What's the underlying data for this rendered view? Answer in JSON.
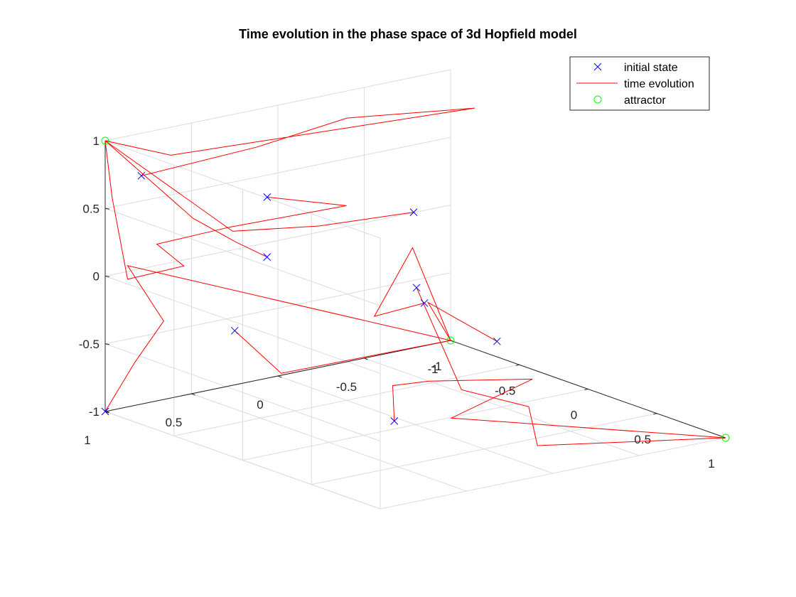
{
  "chart_data": {
    "type": "line",
    "title": "Time evolution in the phase space of 3d Hopfield model",
    "xlabel": "",
    "ylabel": "",
    "zlabel": "",
    "xlim": [
      -1,
      1
    ],
    "ylim": [
      -1,
      1
    ],
    "zlim": [
      -1,
      1
    ],
    "x_ticks": [
      "-1",
      "-0.5",
      "0",
      "0.5",
      "1"
    ],
    "y_ticks": [
      "-1",
      "-0.5",
      "0",
      "0.5",
      "1"
    ],
    "z_ticks": [
      "-1",
      "-0.5",
      "0",
      "0.5",
      "1"
    ],
    "grid": true,
    "legend_position": "top-right",
    "legend": [
      "initial state",
      "time evolution",
      "attractor"
    ],
    "colors": {
      "initial": "#0000ff",
      "evolution": "#ff0000",
      "attractor": "#00ff00"
    },
    "attractors": [
      [
        -1,
        1,
        1
      ],
      [
        -1,
        -1,
        -1
      ],
      [
        1,
        -1,
        -1
      ]
    ],
    "trajectories": [
      {
        "points": [
          [
            -0.45,
            0.5,
            0.65
          ],
          [
            -0.25,
            0.2,
            0.58
          ],
          [
            -0.6,
            0.6,
            0.4
          ],
          [
            -0.75,
            0.9,
            0.3
          ],
          [
            -0.78,
            0.72,
            0.08
          ],
          [
            -0.9,
            0.95,
            0.0
          ],
          [
            -0.95,
            1.0,
            0.6
          ],
          [
            -1,
            1,
            1
          ]
        ]
      },
      {
        "points": [
          [
            -0.2,
            0.7,
            0.35
          ],
          [
            -0.3,
            0.8,
            0.45
          ],
          [
            -0.55,
            0.85,
            0.55
          ],
          [
            -1,
            1,
            1
          ]
        ]
      },
      {
        "points": [
          [
            0.05,
            0.05,
            0.6
          ],
          [
            -0.2,
            0.4,
            0.5
          ],
          [
            -0.45,
            0.7,
            0.45
          ],
          [
            -1,
            1,
            1
          ]
        ]
      },
      {
        "points": [
          [
            -0.8,
            0.95,
            0.8
          ],
          [
            -0.9,
            0.2,
            0.78
          ],
          [
            -1,
            -0.4,
            0.8
          ],
          [
            -0.7,
            -0.9,
            0.85
          ],
          [
            -0.9,
            0.7,
            0.85
          ],
          [
            -1,
            1,
            1
          ]
        ]
      },
      {
        "points": [
          [
            -1,
            1,
            -1
          ],
          [
            -0.85,
            0.95,
            -0.6
          ],
          [
            -0.7,
            0.9,
            -0.25
          ],
          [
            -0.9,
            0.95,
            0.1
          ],
          [
            -1,
            -1,
            -1
          ]
        ]
      },
      {
        "points": [
          [
            -0.5,
            -0.45,
            -0.4
          ],
          [
            -0.55,
            -0.2,
            -0.45
          ],
          [
            -0.9,
            -0.7,
            -0.2
          ],
          [
            -1,
            -1,
            -1
          ]
        ]
      },
      {
        "points": [
          [
            0.6,
            0.6,
            -0.6
          ],
          [
            0.4,
            0.45,
            -0.45
          ],
          [
            0.35,
            0.2,
            -0.5
          ],
          [
            0.6,
            -0.2,
            -0.5
          ],
          [
            0.45,
            0.15,
            -0.75
          ],
          [
            1,
            -1,
            -1
          ]
        ]
      },
      {
        "points": [
          [
            -0.6,
            -0.95,
            -0.85
          ],
          [
            -0.85,
            -0.75,
            -0.6
          ],
          [
            -1,
            -1,
            -1
          ]
        ]
      },
      {
        "points": [
          [
            0.95,
            0.75,
            0.55
          ],
          [
            0.9,
            0.45,
            -0.3
          ],
          [
            0.95,
            0.1,
            -0.5
          ],
          [
            0.95,
            0.05,
            -0.8
          ],
          [
            1,
            -1,
            -1
          ]
        ]
      },
      {
        "points": [
          [
            -1,
            0.25,
            -0.6
          ],
          [
            -0.85,
            0.1,
            -0.9
          ],
          [
            -1,
            -1,
            -1
          ]
        ]
      }
    ]
  }
}
